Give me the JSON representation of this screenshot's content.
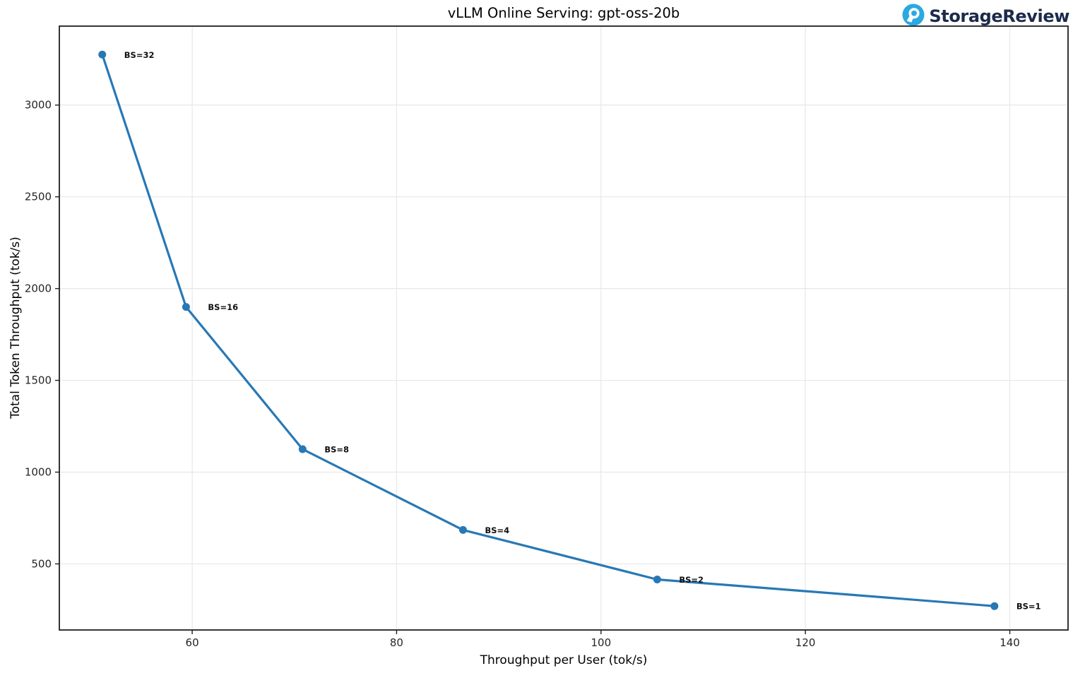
{
  "header": {
    "title": "vLLM Online Serving: gpt-oss-20b",
    "brand": {
      "name": "StorageReview",
      "icon": "storagereview-logo-icon",
      "icon_color": "#2aa9e0",
      "text_color": "#1b2b4a"
    }
  },
  "chart_data": {
    "type": "line",
    "title": "vLLM Online Serving: gpt-oss-20b",
    "xlabel": "Throughput per User (tok/s)",
    "ylabel": "Total Token Throughput (tok/s)",
    "xlim": [
      47.0,
      145.7
    ],
    "ylim": [
      140,
      3430
    ],
    "x_ticks": [
      60,
      80,
      100,
      120,
      140
    ],
    "y_ticks": [
      500,
      1000,
      1500,
      2000,
      2500,
      3000
    ],
    "grid": true,
    "legend_position": "none",
    "colors": {
      "line": "#2878b5",
      "marker": "#2878b5",
      "grid": "#e7e7e7",
      "spine": "#1f1f1f",
      "tick_label": "#262626",
      "annotation": "#111111"
    },
    "series": [
      {
        "name": "gpt-oss-20b",
        "points": [
          {
            "label": "BS=32",
            "x": 51.2,
            "y": 3275
          },
          {
            "label": "BS=16",
            "x": 59.4,
            "y": 1900
          },
          {
            "label": "BS=8",
            "x": 70.8,
            "y": 1125
          },
          {
            "label": "BS=4",
            "x": 86.5,
            "y": 685
          },
          {
            "label": "BS=2",
            "x": 105.5,
            "y": 415
          },
          {
            "label": "BS=1",
            "x": 138.5,
            "y": 270
          }
        ]
      }
    ]
  }
}
